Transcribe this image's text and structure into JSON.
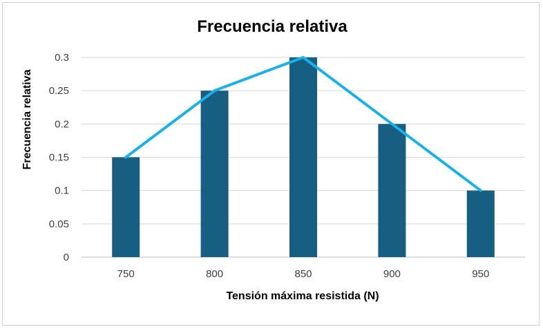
{
  "chart_data": {
    "type": "bar",
    "title": "Frecuencia relativa",
    "xlabel": "Tensión máxima resistida (N)",
    "ylabel": "Frecuencia relativa",
    "categories": [
      "750",
      "800",
      "850",
      "900",
      "950"
    ],
    "series": [
      {
        "type": "bar",
        "values": [
          0.15,
          0.25,
          0.3,
          0.2,
          0.1
        ]
      },
      {
        "type": "line",
        "values": [
          0.15,
          0.25,
          0.3,
          0.2,
          0.1
        ]
      }
    ],
    "ylim": [
      0,
      0.3
    ],
    "yticks": [
      "0",
      "0.05",
      "0.1",
      "0.15",
      "0.2",
      "0.25",
      "0.3"
    ],
    "grid": true,
    "legend": "none",
    "colors": {
      "bar": "#175e83",
      "line": "#1ab0e8",
      "grid": "#d9d9d9"
    }
  }
}
